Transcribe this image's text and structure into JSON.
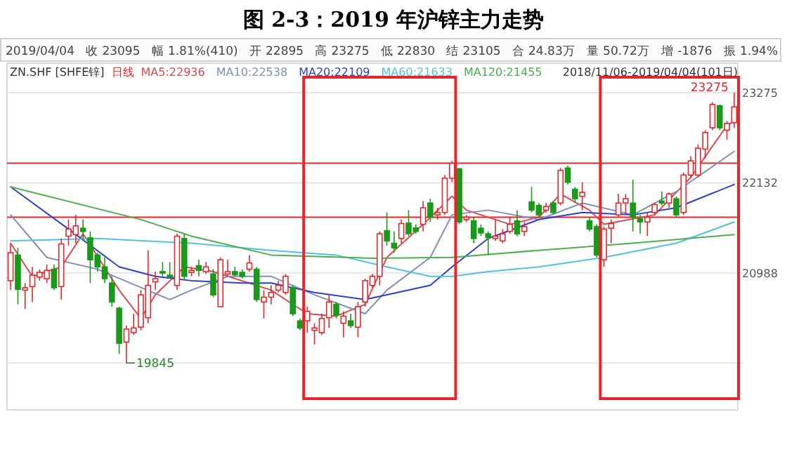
{
  "chart_data": {
    "type": "candlestick",
    "title": "图 2-3：2019 年沪锌主力走势",
    "categories": [
      null,
      null,
      null,
      null,
      null,
      null,
      null,
      null,
      null,
      null,
      null,
      null,
      null,
      null,
      null,
      null,
      null,
      null,
      null,
      null,
      null,
      null,
      null,
      null,
      null,
      null,
      null,
      null,
      null,
      null,
      null,
      null,
      null,
      null,
      null,
      null,
      null,
      null,
      null,
      null,
      null,
      null,
      null,
      null,
      null,
      null,
      null,
      null,
      null,
      null,
      null,
      null,
      null,
      null,
      null,
      null,
      null,
      null,
      null,
      null,
      null,
      null,
      null,
      null,
      null,
      null,
      null,
      null,
      null,
      null,
      null,
      null,
      null,
      null,
      null,
      null,
      null,
      null,
      null,
      null,
      null,
      null,
      null,
      null,
      null,
      null,
      null,
      null,
      null,
      null,
      null,
      null,
      null,
      null,
      null,
      null,
      null,
      null,
      null,
      null,
      null
    ],
    "ohlc": [
      [
        20890,
        21365,
        20770,
        21245
      ],
      [
        21215,
        21305,
        20590,
        20780
      ],
      [
        20770,
        20860,
        20530,
        20800
      ],
      [
        20815,
        21065,
        20620,
        20960
      ],
      [
        20935,
        21035,
        20890,
        20995
      ],
      [
        20915,
        21095,
        20860,
        21020
      ],
      [
        21035,
        21095,
        20770,
        20800
      ],
      [
        20815,
        21425,
        20650,
        21355
      ],
      [
        21455,
        21665,
        21335,
        21545
      ],
      [
        21475,
        21725,
        21365,
        21585
      ],
      [
        21555,
        21665,
        21395,
        21515
      ],
      [
        21435,
        21515,
        20860,
        21155
      ],
      [
        21215,
        21245,
        21005,
        21065
      ],
      [
        21065,
        21185,
        20860,
        20915
      ],
      [
        20860,
        20945,
        20560,
        20620
      ],
      [
        20540,
        20560,
        19960,
        20095
      ],
      [
        20110,
        20320,
        19845,
        20275
      ],
      [
        20230,
        20470,
        20200,
        20290
      ],
      [
        20300,
        20770,
        20260,
        20710
      ],
      [
        20420,
        21275,
        20350,
        20830
      ],
      [
        20875,
        21005,
        20770,
        20915
      ],
      [
        21005,
        21125,
        20945,
        20985
      ],
      [
        20960,
        21125,
        20915,
        20935
      ],
      [
        20830,
        21485,
        20770,
        21455
      ],
      [
        21425,
        21485,
        20890,
        20945
      ],
      [
        20995,
        21065,
        20945,
        21020
      ],
      [
        21080,
        21155,
        20945,
        21020
      ],
      [
        21005,
        21125,
        20975,
        21065
      ],
      [
        20975,
        21035,
        20680,
        20710
      ],
      [
        20560,
        21185,
        20560,
        21155
      ],
      [
        20975,
        21155,
        20945,
        21005
      ],
      [
        21005,
        21065,
        20945,
        20965
      ],
      [
        20995,
        21035,
        20915,
        20945
      ],
      [
        21035,
        21215,
        21005,
        21115
      ],
      [
        21035,
        21065,
        20620,
        20650
      ],
      [
        20620,
        20770,
        20410,
        20680
      ],
      [
        20680,
        20830,
        20590,
        20740
      ],
      [
        20770,
        20890,
        20740,
        20830
      ],
      [
        20740,
        20975,
        20710,
        20945
      ],
      [
        20800,
        20830,
        20440,
        20470
      ],
      [
        20380,
        20410,
        20260,
        20290
      ],
      [
        20380,
        20560,
        20230,
        20500
      ],
      [
        20260,
        20350,
        20080,
        20290
      ],
      [
        20230,
        20470,
        20200,
        20410
      ],
      [
        20420,
        20710,
        20290,
        20620
      ],
      [
        20590,
        20620,
        20410,
        20450
      ],
      [
        20350,
        20500,
        20170,
        20440
      ],
      [
        20380,
        20470,
        20290,
        20320
      ],
      [
        20300,
        20620,
        20170,
        20560
      ],
      [
        20620,
        20915,
        20560,
        20890
      ],
      [
        20830,
        20975,
        20800,
        20945
      ],
      [
        20945,
        21515,
        20830,
        21485
      ],
      [
        21525,
        21755,
        21335,
        21395
      ],
      [
        21365,
        21515,
        21245,
        21305
      ],
      [
        21425,
        21665,
        21365,
        21615
      ],
      [
        21620,
        21785,
        21455,
        21485
      ],
      [
        21560,
        21605,
        21485,
        21515
      ],
      [
        21605,
        21900,
        21515,
        21815
      ],
      [
        21875,
        21930,
        21635,
        21695
      ],
      [
        21725,
        21815,
        21665,
        21755
      ],
      [
        21755,
        22230,
        21725,
        22190
      ],
      [
        22190,
        22410,
        22140,
        22380
      ],
      [
        22310,
        22320,
        21605,
        21635
      ],
      [
        21665,
        21725,
        21635,
        21695
      ],
      [
        21650,
        21695,
        21365,
        21425
      ],
      [
        21555,
        21605,
        21455,
        21495
      ],
      [
        21485,
        21515,
        21215,
        21435
      ],
      [
        21425,
        21665,
        21395,
        21455
      ],
      [
        21395,
        21545,
        21365,
        21485
      ],
      [
        21515,
        21695,
        21485,
        21605
      ],
      [
        21650,
        21785,
        21455,
        21485
      ],
      [
        21515,
        21635,
        21455,
        21575
      ],
      [
        21890,
        22080,
        21755,
        21785
      ],
      [
        21845,
        21875,
        21695,
        21725
      ],
      [
        21785,
        21875,
        21755,
        21830
      ],
      [
        21875,
        21900,
        21725,
        21755
      ],
      [
        21875,
        22320,
        21845,
        22290
      ],
      [
        22320,
        22350,
        22110,
        22140
      ],
      [
        22050,
        22080,
        21875,
        21930
      ],
      [
        21960,
        22140,
        21785,
        22010
      ],
      [
        21650,
        21695,
        21515,
        21545
      ],
      [
        21575,
        21605,
        21185,
        21215
      ],
      [
        21155,
        21575,
        21065,
        21545
      ],
      [
        21555,
        21665,
        21365,
        21615
      ],
      [
        21725,
        21990,
        21695,
        21875
      ],
      [
        21875,
        21990,
        21725,
        21930
      ],
      [
        21875,
        22170,
        21515,
        21695
      ],
      [
        21675,
        21725,
        21485,
        21635
      ],
      [
        21635,
        21755,
        21455,
        21695
      ],
      [
        21755,
        21875,
        21725,
        21855
      ],
      [
        21900,
        22020,
        21845,
        21875
      ],
      [
        21875,
        22010,
        21815,
        21990
      ],
      [
        21930,
        21960,
        21695,
        21725
      ],
      [
        21755,
        22260,
        21725,
        22230
      ],
      [
        22230,
        22470,
        22200,
        22410
      ],
      [
        22230,
        22620,
        22200,
        22570
      ],
      [
        22560,
        22800,
        22440,
        22770
      ],
      [
        22830,
        23155,
        22800,
        23125
      ],
      [
        23110,
        23125,
        22800,
        22830
      ],
      [
        22800,
        22915,
        22680,
        22885
      ],
      [
        22895,
        23275,
        22830,
        23095
      ]
    ],
    "series": [
      {
        "name": "MA5:22936",
        "type": "line",
        "color": "#e0474c",
        "values": [
          21365,
          null,
          null,
          20945,
          null,
          null,
          null,
          21065,
          null,
          null,
          21485,
          null,
          null,
          null,
          null,
          20770,
          null,
          null,
          20410,
          null,
          20710,
          null,
          null,
          null,
          21065,
          null,
          null,
          null,
          21005,
          null,
          null,
          null,
          null,
          null,
          null,
          null,
          20770,
          null,
          null,
          null,
          null,
          20470,
          null,
          null,
          null,
          20440,
          null,
          null,
          null,
          20590,
          null,
          null,
          21185,
          null,
          null,
          null,
          null,
          21605,
          null,
          null,
          null,
          21960,
          null,
          21785,
          null,
          null,
          null,
          null,
          null,
          21605,
          null,
          null,
          null,
          21695,
          null,
          null,
          21990,
          null,
          null,
          null,
          21785,
          null,
          21605,
          null,
          null,
          null,
          null,
          null,
          null,
          21725,
          null,
          null,
          null,
          null,
          22200,
          null,
          null,
          null,
          null,
          22860,
          22915
        ]
      },
      {
        "name": "MA10:22538",
        "type": "line",
        "color": "#7f8fb8",
        "values": [
          21725,
          null,
          null,
          null,
          null,
          21185,
          null,
          null,
          null,
          null,
          null,
          null,
          21035,
          null,
          null,
          null,
          null,
          null,
          null,
          null,
          null,
          null,
          20650,
          null,
          null,
          20770,
          null,
          null,
          null,
          null,
          20945,
          null,
          null,
          null,
          null,
          null,
          20945,
          null,
          null,
          null,
          null,
          null,
          20710,
          null,
          null,
          null,
          null,
          null,
          null,
          20470,
          null,
          null,
          20770,
          null,
          null,
          null,
          null,
          null,
          21185,
          null,
          null,
          21725,
          null,
          null,
          null,
          null,
          21785,
          null,
          null,
          null,
          null,
          null,
          null,
          21665,
          null,
          null,
          null,
          null,
          null,
          21875,
          null,
          null,
          null,
          null,
          null,
          null,
          21725,
          null,
          null,
          null,
          null,
          null,
          22020,
          null,
          null,
          null,
          null,
          null,
          null,
          null,
          22530
        ]
      },
      {
        "name": "MA20:22109",
        "type": "line",
        "color": "#2b3fd6",
        "values": [
          22080,
          null,
          null,
          null,
          null,
          null,
          null,
          null,
          21545,
          null,
          null,
          null,
          null,
          null,
          null,
          21065,
          null,
          null,
          null,
          null,
          20945,
          null,
          null,
          null,
          null,
          20890,
          null,
          null,
          null,
          null,
          null,
          null,
          20860,
          null,
          null,
          null,
          20860,
          null,
          null,
          null,
          null,
          null,
          20740,
          null,
          null,
          null,
          null,
          null,
          null,
          20650,
          null,
          null,
          20710,
          null,
          null,
          null,
          null,
          null,
          20830,
          null,
          null,
          21065,
          null,
          null,
          null,
          null,
          21425,
          null,
          null,
          null,
          null,
          null,
          null,
          21665,
          null,
          null,
          null,
          null,
          null,
          21755,
          null,
          null,
          null,
          null,
          null,
          null,
          21725,
          null,
          null,
          null,
          null,
          null,
          21815,
          null,
          null,
          null,
          null,
          null,
          null,
          null,
          22110
        ]
      },
      {
        "name": "MA60:21633",
        "type": "line",
        "color": "#4fc3e0",
        "values": [
          21395,
          null,
          null,
          null,
          null,
          null,
          null,
          null,
          null,
          null,
          null,
          null,
          21425,
          null,
          null,
          null,
          null,
          null,
          null,
          null,
          null,
          null,
          null,
          null,
          null,
          21365,
          null,
          null,
          null,
          null,
          null,
          null,
          null,
          null,
          null,
          null,
          21275,
          null,
          null,
          null,
          null,
          null,
          null,
          null,
          null,
          21215,
          null,
          null,
          null,
          null,
          null,
          null,
          21065,
          null,
          null,
          null,
          null,
          null,
          20945,
          null,
          null,
          20945,
          null,
          null,
          null,
          null,
          21005,
          null,
          null,
          null,
          null,
          null,
          null,
          21065,
          null,
          null,
          null,
          null,
          null,
          null,
          null,
          null,
          21185,
          null,
          null,
          null,
          null,
          null,
          null,
          null,
          null,
          null,
          21365,
          null,
          null,
          null,
          null,
          null,
          null,
          null,
          21635
        ]
      },
      {
        "name": "MA120:21455",
        "type": "line",
        "color": "#4cb04c",
        "values": [
          22080,
          null,
          null,
          null,
          null,
          null,
          null,
          null,
          null,
          null,
          null,
          null,
          null,
          null,
          null,
          null,
          null,
          null,
          21665,
          null,
          null,
          null,
          null,
          null,
          null,
          21455,
          null,
          null,
          null,
          null,
          null,
          null,
          null,
          null,
          null,
          null,
          21215,
          null,
          null,
          null,
          null,
          null,
          null,
          null,
          null,
          null,
          null,
          null,
          null,
          null,
          21175,
          null,
          null,
          null,
          null,
          null,
          null,
          null,
          null,
          null,
          null,
          21185,
          null,
          null,
          null,
          null,
          null,
          null,
          null,
          null,
          null,
          null,
          null,
          21275,
          null,
          null,
          null,
          null,
          null,
          null,
          null,
          null,
          null,
          null,
          null,
          null,
          21365,
          null,
          null,
          null,
          null,
          null,
          null,
          null,
          null,
          null,
          null,
          null,
          null,
          null,
          21475
        ]
      }
    ],
    "ylim": [
      19250,
      23650
    ],
    "yticks": [
      {
        "value": 19845,
        "label": null
      },
      20988,
      22132,
      23275
    ],
    "tick_labels": "y",
    "grid": "y",
    "legend": "top left",
    "ref_lines": [
      {
        "axis": "y",
        "value": 22380,
        "color": "#e8262a"
      },
      {
        "axis": "y",
        "value": 21695,
        "color": "#e8262a"
      }
    ],
    "annotations": [
      "2019/04/04",
      "收 23095",
      "幅 1.81%(410)",
      "开 22895",
      "高 23275",
      "低 22830",
      "结 23105",
      "合 24.83万",
      "量 50.72万",
      "增 -1876",
      "振 1.94%",
      "ZN.SHF [SHFE锌]",
      "日线",
      "2018/11/06-2019/04/04(101日)",
      "23275",
      "19845"
    ]
  }
}
